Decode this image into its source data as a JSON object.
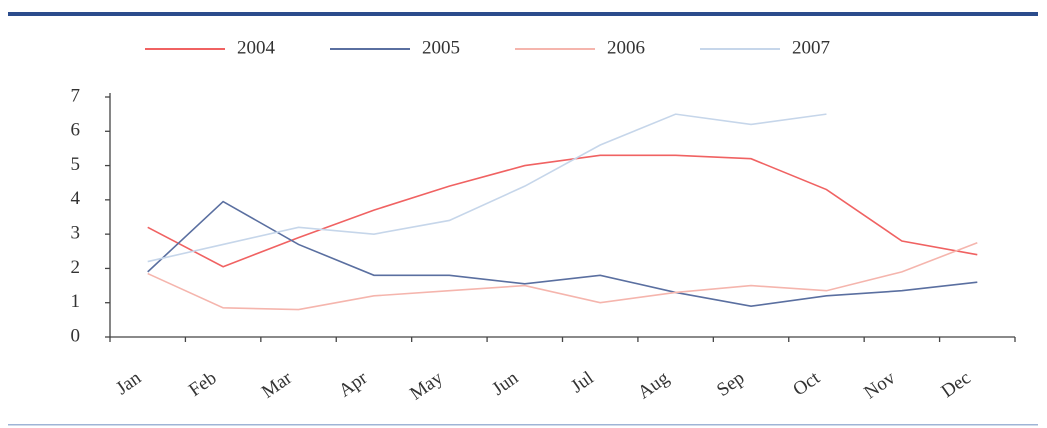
{
  "chart_data": {
    "type": "line",
    "categories": [
      "Jan",
      "Feb",
      "Mar",
      "Apr",
      "May",
      "Jun",
      "Jul",
      "Aug",
      "Sep",
      "Oct",
      "Nov",
      "Dec"
    ],
    "series": [
      {
        "name": "2004",
        "color": "#f06262",
        "values": [
          3.2,
          2.05,
          2.9,
          3.7,
          4.4,
          5.0,
          5.3,
          5.3,
          5.2,
          4.3,
          2.8,
          2.4
        ]
      },
      {
        "name": "2005",
        "color": "#5a6fa0",
        "values": [
          1.9,
          3.95,
          2.7,
          1.8,
          1.8,
          1.55,
          1.8,
          1.3,
          0.9,
          1.2,
          1.35,
          1.6
        ]
      },
      {
        "name": "2006",
        "color": "#f5b5ad",
        "values": [
          1.85,
          0.85,
          0.8,
          1.2,
          1.35,
          1.5,
          1.0,
          1.3,
          1.5,
          1.35,
          1.9,
          2.75
        ]
      },
      {
        "name": "2007",
        "color": "#c6d6ea",
        "values": [
          2.2,
          2.7,
          3.2,
          3.0,
          3.4,
          4.4,
          5.6,
          6.5,
          6.2,
          6.5,
          null,
          null
        ]
      }
    ],
    "ylim": [
      0,
      7
    ],
    "yticks": [
      0,
      1,
      2,
      3,
      4,
      5,
      6,
      7
    ],
    "grid": false,
    "legend": "top"
  }
}
